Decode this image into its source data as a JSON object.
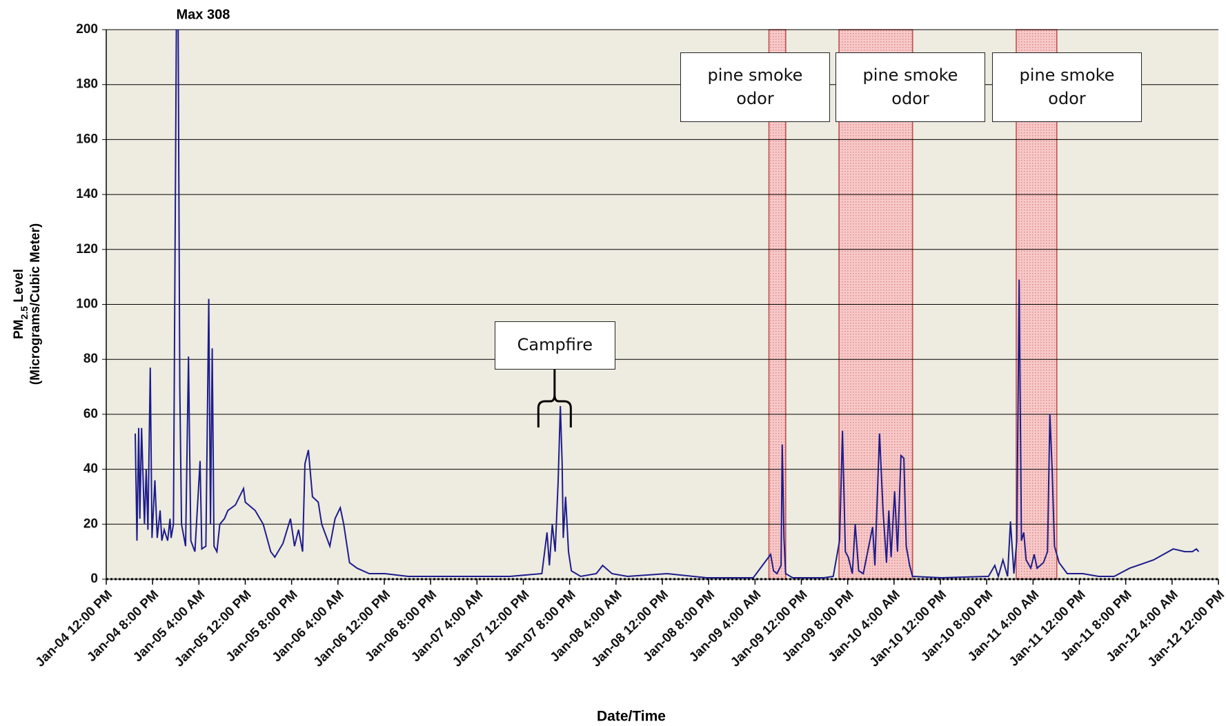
{
  "chart_data": {
    "type": "line",
    "x_label": "Date/Time",
    "y_label": {
      "main": "PM",
      "subscript": "2.5",
      "rest": " Level"
    },
    "y_label_units": "(Micrograms/Cubic Meter)",
    "xlim": [
      0,
      192
    ],
    "ylim": [
      0,
      200
    ],
    "yticks": [
      0,
      20,
      40,
      60,
      80,
      100,
      120,
      140,
      160,
      180,
      200
    ],
    "xticks": [
      {
        "value": 0,
        "label": "Jan-04 12:00 PM"
      },
      {
        "value": 8,
        "label": "Jan-04 8:00 PM"
      },
      {
        "value": 16,
        "label": "Jan-05 4:00 AM"
      },
      {
        "value": 24,
        "label": "Jan-05 12:00 PM"
      },
      {
        "value": 32,
        "label": "Jan-05 8:00 PM"
      },
      {
        "value": 40,
        "label": "Jan-06 4:00 AM"
      },
      {
        "value": 48,
        "label": "Jan-06 12:00 PM"
      },
      {
        "value": 56,
        "label": "Jan-06 8:00 PM"
      },
      {
        "value": 64,
        "label": "Jan-07 4:00 AM"
      },
      {
        "value": 72,
        "label": "Jan-07 12:00 PM"
      },
      {
        "value": 80,
        "label": "Jan-07 8:00 PM"
      },
      {
        "value": 88,
        "label": "Jan-08 4:00 AM"
      },
      {
        "value": 96,
        "label": "Jan-08 12:00 PM"
      },
      {
        "value": 104,
        "label": "Jan-08 8:00 PM"
      },
      {
        "value": 112,
        "label": "Jan-09 4:00 AM"
      },
      {
        "value": 120,
        "label": "Jan-09 12:00 PM"
      },
      {
        "value": 128,
        "label": "Jan-09 8:00 PM"
      },
      {
        "value": 136,
        "label": "Jan-10 4:00 AM"
      },
      {
        "value": 144,
        "label": "Jan-10 12:00 PM"
      },
      {
        "value": 152,
        "label": "Jan-10 8:00 PM"
      },
      {
        "value": 160,
        "label": "Jan-11 4:00 AM"
      },
      {
        "value": 168,
        "label": "Jan-11 12:00 PM"
      },
      {
        "value": 176,
        "label": "Jan-11 8:00 PM"
      },
      {
        "value": 184,
        "label": "Jan-12 4:00 AM"
      },
      {
        "value": 192,
        "label": "Jan-12 12:00 PM"
      }
    ],
    "grid": true,
    "background": "#eeebe0",
    "color": "#1c1c8c",
    "x": [
      5.0,
      5.3,
      5.6,
      5.8,
      6.1,
      6.6,
      6.9,
      7.2,
      7.6,
      7.9,
      8.4,
      8.8,
      9.3,
      9.6,
      10.0,
      10.6,
      11.0,
      11.2,
      11.6,
      12.1,
      12.2,
      12.5,
      12.7,
      13.0,
      13.7,
      14.2,
      14.6,
      15.3,
      16.2,
      16.5,
      17.2,
      17.7,
      18.0,
      18.3,
      18.6,
      19.1,
      19.6,
      20.4,
      21.0,
      22.3,
      23.7,
      24.0,
      25.7,
      27.1,
      28.4,
      29.1,
      30.5,
      31.8,
      32.5,
      33.2,
      33.9,
      34.3,
      34.9,
      35.6,
      36.6,
      37.2,
      38.6,
      39.5,
      40.4,
      41.0,
      42.0,
      43.3,
      45.4,
      48.1,
      52.1,
      57.5,
      63.0,
      69.7,
      75.2,
      76.1,
      76.5,
      77.0,
      77.5,
      78.0,
      78.4,
      78.7,
      78.9,
      79.3,
      79.8,
      80.3,
      81.9,
      84.6,
      85.7,
      87.3,
      90.0,
      96.8,
      103.6,
      111.7,
      114.7,
      115.2,
      115.8,
      116.5,
      116.7,
      117.0,
      117.3,
      118.5,
      123.9,
      125.5,
      126.6,
      127.1,
      127.6,
      128.1,
      128.8,
      129.3,
      129.9,
      130.7,
      132.3,
      132.7,
      133.5,
      134.1,
      134.7,
      135.1,
      135.5,
      136.1,
      136.6,
      137.2,
      137.7,
      138.1,
      138.7,
      139.2,
      144.2,
      152.3,
      153.4,
      154.0,
      154.8,
      155.6,
      156.1,
      156.7,
      157.2,
      157.6,
      158.0,
      158.4,
      158.8,
      159.6,
      160.2,
      160.7,
      161.8,
      162.5,
      162.9,
      163.3,
      163.7,
      164.5,
      165.9,
      168.6,
      171.3,
      174.0,
      176.7,
      180.8,
      184.2,
      186.2,
      187.5,
      188.2,
      188.6
    ],
    "values": [
      53,
      14,
      55,
      22,
      55,
      20,
      40,
      18,
      77,
      15,
      36,
      15,
      25,
      14,
      18,
      14,
      22,
      15,
      20,
      200,
      308,
      163,
      70,
      20,
      12,
      81,
      14,
      10,
      43,
      11,
      12,
      102,
      20,
      84,
      12,
      10,
      20,
      22,
      25,
      27,
      33,
      28,
      25,
      20,
      10,
      8,
      13,
      22,
      12,
      18,
      10,
      42,
      47,
      30,
      28,
      20,
      12,
      22,
      26,
      20,
      6,
      4,
      2,
      2,
      1,
      1,
      1,
      1,
      2,
      17,
      5,
      20,
      10,
      35,
      63,
      42,
      15,
      30,
      10,
      3,
      1,
      2,
      5,
      2,
      1,
      2,
      0.5,
      0.5,
      9,
      3,
      2,
      5,
      49,
      15,
      2,
      0.5,
      0.5,
      1,
      14,
      54,
      10,
      8,
      2,
      20,
      3,
      2,
      19,
      5,
      53,
      25,
      6,
      25,
      8,
      32,
      10,
      45,
      44,
      12,
      5,
      1,
      0.5,
      1,
      5,
      1,
      7,
      1,
      21,
      2,
      14,
      109,
      14,
      17,
      7,
      4,
      9,
      4,
      6,
      10,
      60,
      40,
      12,
      6,
      2,
      2,
      1,
      1,
      4,
      7,
      11,
      10,
      10,
      11,
      10
    ],
    "shaded_regions": [
      {
        "x0": 114.4,
        "x1": 117.3,
        "label": "pine smoke odor"
      },
      {
        "x0": 126.5,
        "x1": 139.2,
        "label": "pine smoke odor"
      },
      {
        "x0": 157.1,
        "x1": 164.1,
        "label": "pine smoke odor"
      }
    ],
    "annotations": [
      {
        "text": "Max 308",
        "x": 12.2
      },
      {
        "text": "Campfire",
        "x0": 74.6,
        "x1": 80.2
      }
    ]
  }
}
